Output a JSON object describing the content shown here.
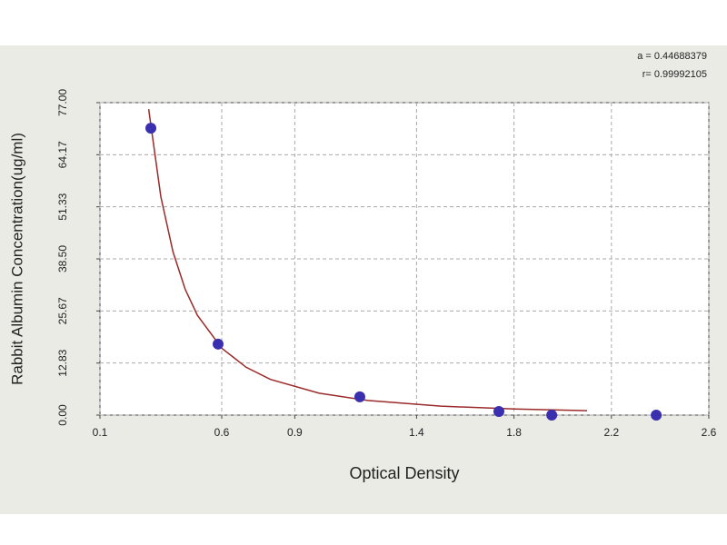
{
  "chart_data": {
    "type": "scatter",
    "x_label": "Optical Density",
    "y_label": "Rabbit  Albumin  Concentration(ug/ml)",
    "annotations": [
      "a = 0.44688379",
      "r= 0.99992105"
    ],
    "xlim": [
      0.1,
      2.6
    ],
    "ylim": [
      0,
      77
    ],
    "xticks": [
      0.1,
      0.6,
      0.9,
      1.4,
      1.8,
      2.2,
      2.6
    ],
    "yticks": [
      {
        "value": 0,
        "label": "0.00"
      },
      12.83,
      25.67,
      {
        "value": 38.5,
        "label": "38.50"
      },
      51.33,
      64.17,
      {
        "value": 77,
        "label": "77.00"
      }
    ],
    "grid": true,
    "points": {
      "color": "#3a2fae",
      "x": [
        0.309,
        0.585,
        1.167,
        1.738,
        1.955,
        2.384
      ],
      "y": [
        70.7,
        17.5,
        4.5,
        0.9,
        0,
        0
      ]
    },
    "fit": {
      "color": "#9b2a2a",
      "x": [
        0.3,
        0.35,
        0.4,
        0.45,
        0.5,
        0.6,
        0.7,
        0.8,
        1.0,
        1.2,
        1.5,
        1.8,
        2.1
      ],
      "y": [
        75.4,
        53.8,
        40.2,
        31.0,
        24.6,
        16.5,
        11.8,
        8.8,
        5.4,
        3.6,
        2.2,
        1.5,
        1.1
      ]
    }
  }
}
